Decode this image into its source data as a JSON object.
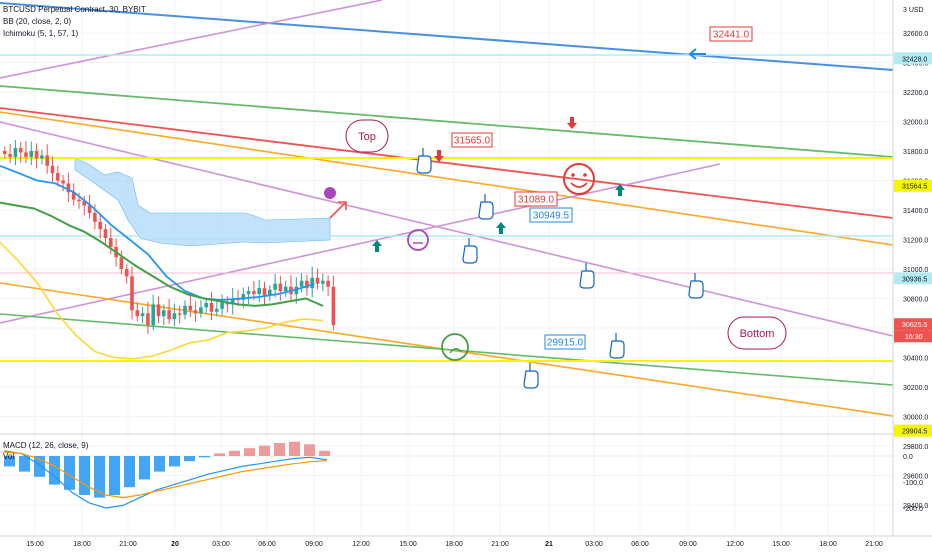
{
  "legend": {
    "symbol_line": "BTCUSD Perpetual Contract, 30, BYBIT",
    "bb_line": "BB (20, close, 2, 0)",
    "ichimoku_line": "Ichimoku (5, 1, 57, 1)",
    "macd_line": "MACD (12, 26, close, 9)",
    "macd_vol": "Vol"
  },
  "price_axis": {
    "currency": "USD",
    "ticks": [
      "32600.0",
      "32400.0",
      "32200.0",
      "32000.0",
      "31800.0",
      "31600.0",
      "31400.0",
      "31200.0",
      "31000.0",
      "30800.0",
      "30600.0",
      "30400.0",
      "30200.0",
      "30000.0",
      "29800.0",
      "29600.0",
      "29400.0"
    ],
    "top_partial": "3",
    "badges": [
      {
        "label": "32428.0",
        "color": "#b2ebf2",
        "text_color": "#131722",
        "price": 32428
      },
      {
        "label": "31564.5",
        "color": "#f5f500",
        "text_color": "#131722",
        "price": 31564.5
      },
      {
        "label": "30936.5",
        "color": "#b2ebf2",
        "text_color": "#131722",
        "price": 30936.5
      },
      {
        "label": "30625.5",
        "color": "#ef5350",
        "text_color": "#ffffff",
        "price": 30625.5
      },
      {
        "label": "29904.5",
        "color": "#f5f500",
        "text_color": "#131722",
        "price": 29904.5
      }
    ],
    "countdown": "16:30"
  },
  "macd_axis": {
    "ticks": [
      "0.0",
      "-100.0",
      "-200.0"
    ]
  },
  "time_axis": {
    "ticks": [
      {
        "label": "15:00",
        "bold": false
      },
      {
        "label": "18:00",
        "bold": false
      },
      {
        "label": "21:00",
        "bold": false
      },
      {
        "label": "20",
        "bold": true
      },
      {
        "label": "03:00",
        "bold": false
      },
      {
        "label": "06:00",
        "bold": false
      },
      {
        "label": "09:00",
        "bold": false
      },
      {
        "label": "12:00",
        "bold": false
      },
      {
        "label": "15:00",
        "bold": false
      },
      {
        "label": "18:00",
        "bold": false
      },
      {
        "label": "21:00",
        "bold": false
      },
      {
        "label": "21",
        "bold": true
      },
      {
        "label": "03:00",
        "bold": false
      },
      {
        "label": "06:00",
        "bold": false
      },
      {
        "label": "09:00",
        "bold": false
      },
      {
        "label": "12:00",
        "bold": false
      },
      {
        "label": "15:00",
        "bold": false
      },
      {
        "label": "18:00",
        "bold": false
      },
      {
        "label": "21:00",
        "bold": false
      }
    ]
  },
  "callouts": {
    "price_notes": [
      "32441.0",
      "31565.0",
      "31089.0",
      "30949.5",
      "29915.0"
    ],
    "top_label": "Top",
    "bottom_label": "Bottom"
  },
  "colors": {
    "blue_line": "#4a90e2",
    "red_line": "#ef5350",
    "green_line": "#66bb6a",
    "orange_line": "#ffa726",
    "violet_line": "#ce93d8",
    "yellow_line": "#f5f500",
    "cyan_line": "#b2ebf2",
    "candle_up": "#26a69a",
    "candle_down": "#ef5350",
    "macd_fast": "#2196f3",
    "macd_signal": "#ff9800",
    "cloud": "#90caf9",
    "arrow_up": "#00897b",
    "arrow_down": "#e53935",
    "hand_stroke": "#1565c0"
  },
  "chart_data": {
    "type": "line",
    "symbol": "BTCUSD",
    "title": "BTCUSD Perpetual Contract, 30, BYBIT",
    "ylim": [
      29300,
      32800
    ],
    "candles_close": [
      31780,
      31760,
      31820,
      31790,
      31760,
      31800,
      31750,
      31770,
      31700,
      31650,
      31600,
      31580,
      31520,
      31470,
      31460,
      31430,
      31380,
      31320,
      31270,
      31210,
      31150,
      31080,
      31000,
      30950,
      30720,
      30680,
      30700,
      30620,
      30760,
      30680,
      30720,
      30660,
      30700,
      30690,
      30750,
      30720,
      30700,
      30740,
      30770,
      30710,
      30730,
      30780,
      30760,
      30800,
      30790,
      30830,
      30850,
      30830,
      30870,
      30820,
      30860,
      30900,
      30850,
      30880,
      30830,
      30880,
      30920,
      30870,
      30940,
      30900,
      30920,
      30880,
      30620
    ],
    "bb_upper": [
      31700,
      31650,
      31600,
      31580,
      31520,
      31420,
      31300,
      31200,
      31100,
      30950,
      30850,
      30800,
      30790,
      30800,
      30810,
      30830,
      30860,
      30900
    ],
    "bb_middle": [
      31450,
      31430,
      31410,
      31360,
      31300,
      31250,
      31180,
      31100,
      31020,
      30950,
      30880,
      30830,
      30800,
      30780,
      30760,
      30750,
      30760,
      30780,
      30800,
      30750
    ],
    "bb_lower": [
      31180,
      31050,
      30900,
      30700,
      30550,
      30440,
      30400,
      30390,
      30410,
      30450,
      30500,
      30520,
      30570,
      30580,
      30600,
      30640,
      30660,
      30650
    ],
    "macd": {
      "histogram": [
        -40,
        -60,
        -80,
        -110,
        -130,
        -150,
        -160,
        -150,
        -120,
        -90,
        -60,
        -40,
        -20,
        -5,
        10,
        20,
        30,
        40,
        50,
        55,
        45,
        20
      ],
      "macd": [
        20,
        10,
        -30,
        -80,
        -140,
        -180,
        -200,
        -190,
        -160,
        -130,
        -110,
        -90,
        -70,
        -55,
        -40,
        -30,
        -20,
        -10,
        -5,
        -15
      ],
      "signal": [
        15,
        10,
        -10,
        -40,
        -80,
        -120,
        -150,
        -160,
        -150,
        -135,
        -120,
        -105,
        -90,
        -75,
        -60,
        -50,
        -40,
        -30,
        -22,
        -18
      ]
    }
  }
}
